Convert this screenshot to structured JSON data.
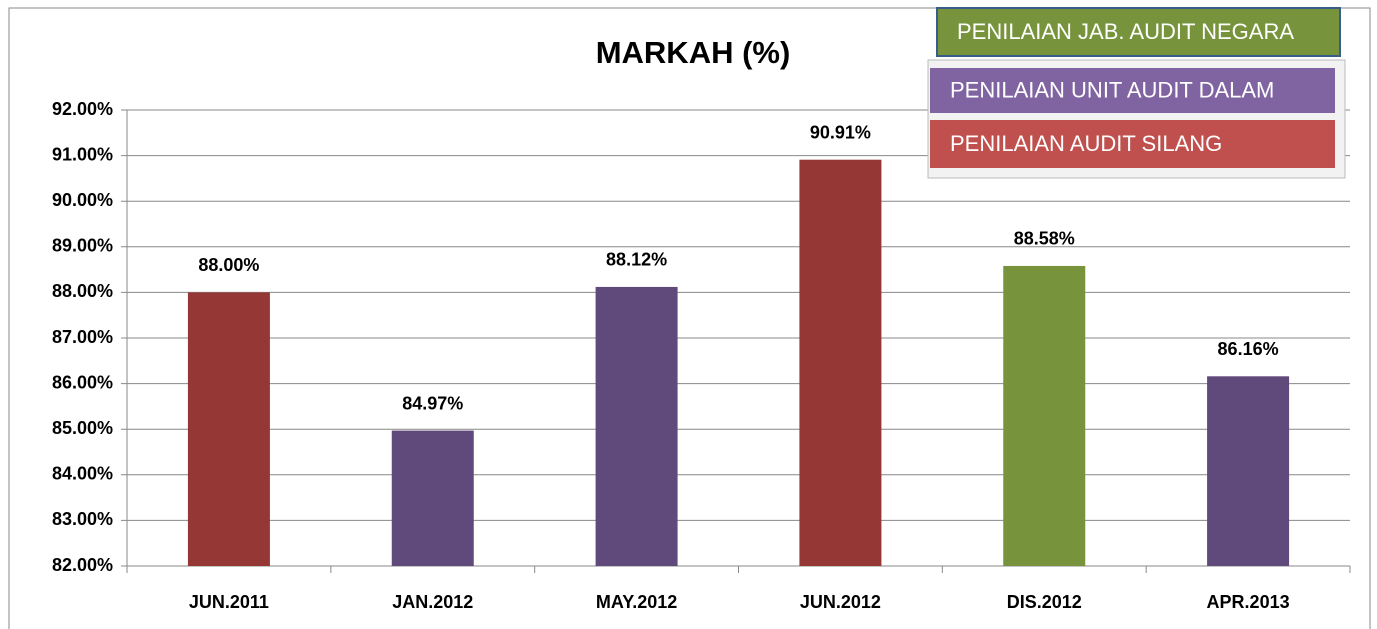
{
  "chart_data": {
    "type": "bar",
    "title": "MARKAH  (%)",
    "categories": [
      "JUN.2011",
      "JAN.2012",
      "MAY.2012",
      "JUN.2012",
      "DIS.2012",
      "APR.2013"
    ],
    "values": [
      88.0,
      84.97,
      88.12,
      90.91,
      88.58,
      86.16
    ],
    "value_labels": [
      "88.00%",
      "84.97%",
      "88.12%",
      "90.91%",
      "88.58%",
      "86.16%"
    ],
    "colors": [
      "#953735",
      "#604a7b",
      "#604a7b",
      "#953735",
      "#77933c",
      "#604a7b"
    ],
    "ylim": [
      82,
      92
    ],
    "yticks": [
      {
        "value": 82,
        "label": "82.00%"
      },
      {
        "value": 83,
        "label": "83.00%"
      },
      {
        "value": 84,
        "label": "84.00%"
      },
      {
        "value": 85,
        "label": "85.00%"
      },
      {
        "value": 86,
        "label": "86.00%"
      },
      {
        "value": 87,
        "label": "87.00%"
      },
      {
        "value": 88,
        "label": "88.00%"
      },
      {
        "value": 89,
        "label": "89.00%"
      },
      {
        "value": 90,
        "label": "90.00%"
      },
      {
        "value": 91,
        "label": "91.00%"
      },
      {
        "value": 92,
        "label": "92.00%"
      }
    ],
    "grid": true,
    "legend": [
      {
        "name": "PENILAIAN JAB. AUDIT NEGARA",
        "color": "#77933c"
      },
      {
        "name": "PENILAIAN UNIT AUDIT DALAM",
        "color": "#8064a2"
      },
      {
        "name": "PENILAIAN AUDIT SILANG",
        "color": "#c0504d"
      }
    ]
  }
}
